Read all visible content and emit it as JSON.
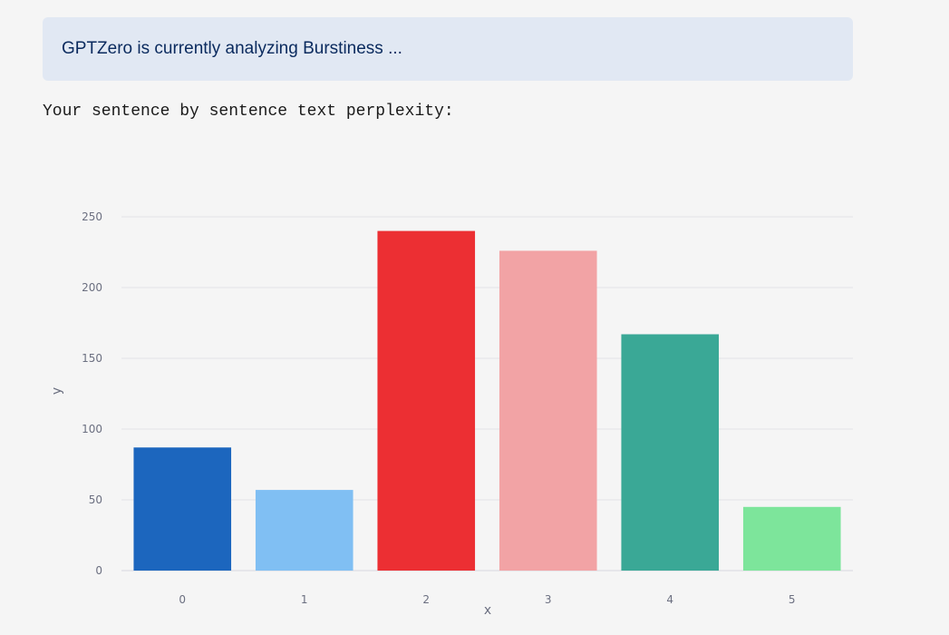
{
  "banner": {
    "text": "GPTZero is currently analyzing Burstiness ..."
  },
  "caption": "Your sentence by sentence text perplexity:",
  "chart_data": {
    "type": "bar",
    "categories": [
      "0",
      "1",
      "2",
      "3",
      "4",
      "5"
    ],
    "values": [
      87,
      57,
      240,
      226,
      167,
      45
    ],
    "colors": [
      "#1c66be",
      "#80bff3",
      "#ec2f33",
      "#f2a3a5",
      "#3aa896",
      "#7de59b"
    ],
    "xlabel": "x",
    "ylabel": "y",
    "ylim": [
      0,
      250
    ],
    "yticks": [
      "0",
      "50",
      "100",
      "150",
      "200",
      "250"
    ],
    "grid": true
  }
}
